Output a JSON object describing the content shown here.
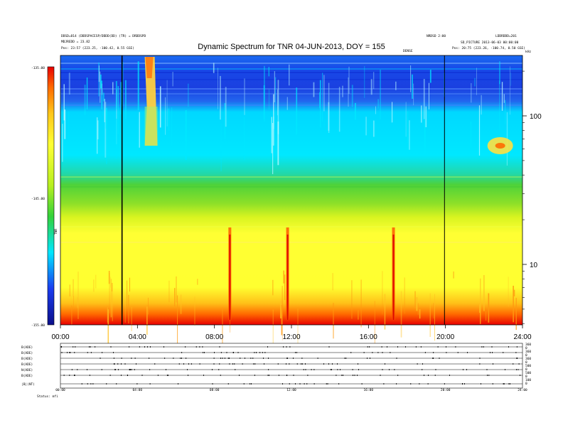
{
  "chart_data": {
    "type": "heatmap",
    "title": "Dynamic Spectrum for TNR 04-JUN-2013, DOY = 155",
    "header_left": [
      "DDSD=814 (DDDSPACESP/DDDD(DD) (TR) = DRDDSPD",
      "MDJREDD = 23.82",
      "Pos:   23:57 (223.25, -100.42, 0.55 GSE)"
    ],
    "header_right": [
      "NRDSD 2:00",
      "LDDRDDD=201",
      "SD_PICTURE 2013-06-03 00:00:00",
      "Pos:   20:75 (223.26, -100.74, 0.50 GSE)"
    ],
    "aux_label_top_right": "DENSE",
    "units_label_right": "kHz",
    "colorbar": {
      "label": "TNR",
      "tick_labels": [
        "-135.00",
        "-145.00",
        "-155.00"
      ],
      "colors": [
        "#0b0f8a",
        "#1a3cf0",
        "#00e6ff",
        "#33d23a",
        "#b8f020",
        "#ffff33",
        "#ffc61a",
        "#ff6a00",
        "#e80000"
      ]
    },
    "x_axis": {
      "tick_labels": [
        "00:00",
        "04:00",
        "08:00",
        "12:00",
        "16:00",
        "20:00",
        "24:00"
      ],
      "xlim": [
        0,
        24
      ]
    },
    "y_axis_right": {
      "tick_labels": [
        "100",
        "10"
      ],
      "scale": "log"
    },
    "vertical_markers_hours": [
      3.2,
      19.95
    ],
    "bands": [
      {
        "label": "blue",
        "color": "#1848e8"
      },
      {
        "label": "cyan",
        "color": "#00e6ff"
      },
      {
        "label": "green",
        "color": "#5ad838"
      },
      {
        "label": "yellow",
        "color": "#ffff33"
      },
      {
        "label": "red",
        "color": "#ff3000"
      }
    ],
    "features": [
      {
        "kind": "burst",
        "time_h": 4.6,
        "label": "type-III burst"
      },
      {
        "kind": "spike",
        "time_h": 8.8,
        "label": "spike"
      },
      {
        "kind": "spike",
        "time_h": 11.8,
        "label": "spike"
      },
      {
        "kind": "spike",
        "time_h": 17.3,
        "label": "spike"
      },
      {
        "kind": "patch",
        "time_h": 22.4,
        "label": "patch"
      }
    ]
  },
  "ephemeris_panel": {
    "row_labels": [
      "B(ADE)",
      "B(ADE)",
      "B(ADE)",
      "B(ADE)",
      "N(ADE)",
      "B(ADE)",
      "|B|(NT)"
    ],
    "right_labels": [
      "360",
      "0",
      "360",
      "0",
      "360",
      "0",
      "500",
      "0",
      "500",
      "0",
      "100",
      "0"
    ],
    "time_labels": [
      "00:00",
      "04:00",
      "08:00",
      "12:00",
      "16:00",
      "20:00",
      "24:00"
    ],
    "footer_left": "Status:  mfi"
  }
}
